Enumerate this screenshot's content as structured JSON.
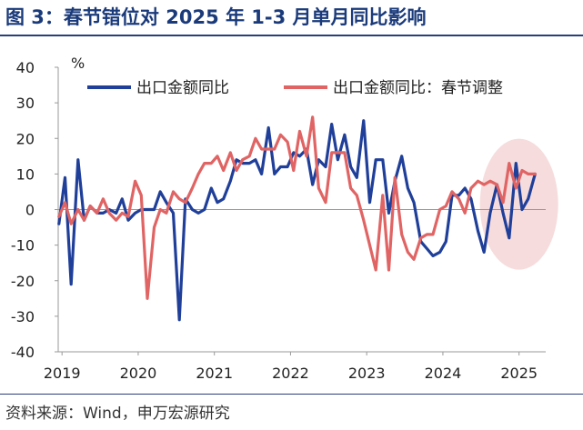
{
  "header": {
    "title": "图 3：春节错位对 2025 年 1-3 月单月同比影响"
  },
  "footer": {
    "source": "资料来源：Wind，申万宏源研究"
  },
  "colors": {
    "series1": "#1f3f99",
    "series2": "#e06464",
    "highlight": "#f4d6d6",
    "axis": "#999999"
  },
  "chart_data": {
    "type": "line",
    "title": "图 3：春节错位对 2025 年 1-3 月单月同比影响",
    "ylabel": "%",
    "ylim": [
      -40,
      40
    ],
    "yticks": [
      40,
      30,
      20,
      10,
      0,
      -10,
      -20,
      -30,
      -40
    ],
    "xlim": [
      2018.95,
      2025.35
    ],
    "xticks": [
      2019,
      2020,
      2021,
      2022,
      2023,
      2024,
      2025
    ],
    "xtick_labels": [
      "2019",
      "2020",
      "2021",
      "2022",
      "2023",
      "2024",
      "2025"
    ],
    "legend": "top",
    "annotation": "highlighted ellipse over 2025 (late 2024 – mid 2025)",
    "series": [
      {
        "name": "出口金额同比",
        "x": [
          2018.96,
          2019.04,
          2019.12,
          2019.21,
          2019.29,
          2019.37,
          2019.46,
          2019.54,
          2019.62,
          2019.71,
          2019.79,
          2019.87,
          2019.96,
          2020.04,
          2020.12,
          2020.21,
          2020.29,
          2020.37,
          2020.46,
          2020.54,
          2020.62,
          2020.71,
          2020.79,
          2020.87,
          2020.96,
          2021.04,
          2021.12,
          2021.21,
          2021.29,
          2021.37,
          2021.46,
          2021.54,
          2021.62,
          2021.71,
          2021.79,
          2021.87,
          2021.96,
          2022.04,
          2022.12,
          2022.21,
          2022.29,
          2022.37,
          2022.46,
          2022.54,
          2022.62,
          2022.71,
          2022.79,
          2022.87,
          2022.96,
          2023.04,
          2023.12,
          2023.21,
          2023.29,
          2023.37,
          2023.46,
          2023.54,
          2023.62,
          2023.71,
          2023.79,
          2023.87,
          2023.96,
          2024.04,
          2024.12,
          2024.21,
          2024.29,
          2024.37,
          2024.46,
          2024.54,
          2024.62,
          2024.71,
          2024.79,
          2024.87,
          2024.96,
          2025.04,
          2025.12,
          2025.21
        ],
        "values": [
          -4,
          9,
          -21,
          14,
          -3,
          1,
          -1,
          -1,
          0,
          -1,
          3,
          -3,
          -1,
          0,
          0,
          0,
          5,
          2,
          -1,
          -31,
          3,
          0,
          -1,
          0,
          6,
          2,
          3,
          8,
          14,
          13,
          13,
          14,
          10,
          23,
          10,
          12,
          12,
          16,
          15,
          17,
          7,
          14,
          12,
          24,
          14,
          21,
          12,
          9,
          25,
          2,
          14,
          14,
          -1,
          8,
          15,
          6,
          2,
          -9,
          -11,
          -13,
          -12,
          -9,
          4,
          4,
          6,
          3,
          -6,
          -12,
          -1,
          7,
          -1,
          -8,
          13,
          0,
          3,
          10
        ],
        "note": "values approximate; blue series differs from red mainly around Chinese New Year months"
      },
      {
        "name": "出口金额同比：春节调整",
        "x": [
          2018.96,
          2019.04,
          2019.12,
          2019.21,
          2019.29,
          2019.37,
          2019.46,
          2019.54,
          2019.62,
          2019.71,
          2019.79,
          2019.87,
          2019.96,
          2020.04,
          2020.12,
          2020.21,
          2020.29,
          2020.37,
          2020.46,
          2020.54,
          2020.62,
          2020.71,
          2020.79,
          2020.87,
          2020.96,
          2021.04,
          2021.12,
          2021.21,
          2021.29,
          2021.37,
          2021.46,
          2021.54,
          2021.62,
          2021.71,
          2021.79,
          2021.87,
          2021.96,
          2022.04,
          2022.12,
          2022.21,
          2022.29,
          2022.37,
          2022.46,
          2022.54,
          2022.62,
          2022.71,
          2022.79,
          2022.87,
          2022.96,
          2023.04,
          2023.12,
          2023.21,
          2023.29,
          2023.37,
          2023.46,
          2023.54,
          2023.62,
          2023.71,
          2023.79,
          2023.87,
          2023.96,
          2024.04,
          2024.12,
          2024.21,
          2024.29,
          2024.37,
          2024.46,
          2024.54,
          2024.62,
          2024.71,
          2024.79,
          2024.87,
          2024.96,
          2025.04,
          2025.12,
          2025.21
        ],
        "values": [
          -2,
          2,
          -4,
          0,
          -3,
          1,
          -1,
          3,
          -1,
          -3,
          -1,
          -2,
          8,
          4,
          -25,
          -5,
          0,
          -1,
          5,
          3,
          2,
          6,
          10,
          13,
          13,
          15,
          11,
          16,
          11,
          14,
          15,
          20,
          17,
          17,
          17,
          21,
          19,
          11,
          22,
          15,
          26,
          6,
          2,
          16,
          16,
          16,
          6,
          4,
          -3,
          -10,
          -17,
          4,
          -17,
          9,
          -7,
          -12,
          -14,
          -8,
          -7,
          -7,
          0,
          1,
          5,
          3,
          -1,
          6,
          8,
          7,
          8,
          7,
          2,
          13,
          6,
          11,
          10,
          10
        ],
        "note": "values approximate"
      }
    ]
  }
}
